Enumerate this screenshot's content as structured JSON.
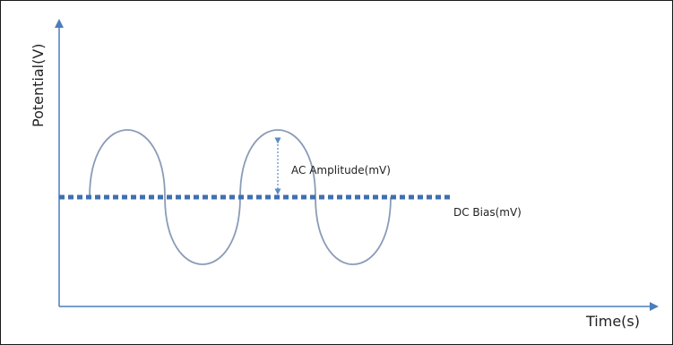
{
  "labels": {
    "y_axis": "Potential(V)",
    "x_axis": "Time(s)",
    "ac_amplitude": "AC Amplitude(mV)",
    "dc_bias": "DC Bias(mV)"
  },
  "colors": {
    "axis": "#4a7ebb",
    "dc_line": "#3f6fb0",
    "sine": "#8a9cb8",
    "arrow": "#5a8ac6",
    "frame": "#1a1a1a"
  }
}
